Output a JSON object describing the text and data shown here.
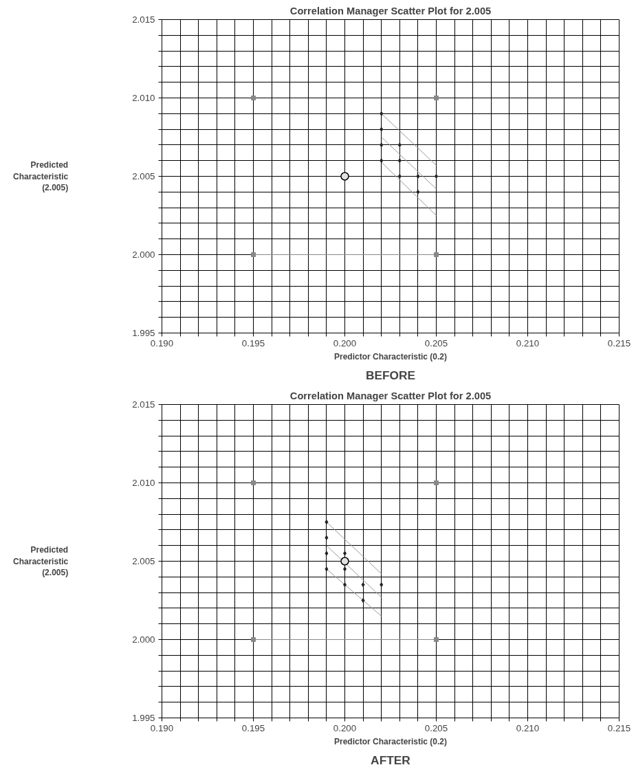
{
  "chart_data": [
    {
      "type": "scatter",
      "title": "Correlation Manager Scatter Plot for 2.005",
      "xlabel": "Predictor Characteristic (0.2)",
      "ylabel": "Predicted\nCharacteristic\n(2.005)",
      "annotations": [
        "BEFORE"
      ],
      "grid": true,
      "xlim": [
        0.19,
        0.215
      ],
      "ylim": [
        1.995,
        2.015
      ],
      "xticks": [
        {
          "value": 0.19,
          "label": "0.190"
        },
        {
          "value": 0.191,
          "label": null
        },
        {
          "value": 0.192,
          "label": null
        },
        {
          "value": 0.193,
          "label": null
        },
        {
          "value": 0.194,
          "label": null
        },
        {
          "value": 0.195,
          "label": "0.195"
        },
        {
          "value": 0.196,
          "label": null
        },
        {
          "value": 0.197,
          "label": null
        },
        {
          "value": 0.198,
          "label": null
        },
        {
          "value": 0.199,
          "label": null
        },
        {
          "value": 0.2,
          "label": "0.200"
        },
        {
          "value": 0.201,
          "label": null
        },
        {
          "value": 0.202,
          "label": null
        },
        {
          "value": 0.203,
          "label": null
        },
        {
          "value": 0.204,
          "label": null
        },
        {
          "value": 0.205,
          "label": "0.205"
        },
        {
          "value": 0.206,
          "label": null
        },
        {
          "value": 0.207,
          "label": null
        },
        {
          "value": 0.208,
          "label": null
        },
        {
          "value": 0.209,
          "label": null
        },
        {
          "value": 0.21,
          "label": "0.210"
        },
        {
          "value": 0.211,
          "label": null
        },
        {
          "value": 0.212,
          "label": null
        },
        {
          "value": 0.213,
          "label": null
        },
        {
          "value": 0.214,
          "label": null
        },
        {
          "value": 0.215,
          "label": "0.215"
        }
      ],
      "yticks": [
        {
          "value": 1.995,
          "label": "1.995"
        },
        {
          "value": 1.996,
          "label": null
        },
        {
          "value": 1.997,
          "label": null
        },
        {
          "value": 1.998,
          "label": null
        },
        {
          "value": 1.999,
          "label": null
        },
        {
          "value": 2.0,
          "label": "2.000"
        },
        {
          "value": 2.001,
          "label": null
        },
        {
          "value": 2.002,
          "label": null
        },
        {
          "value": 2.003,
          "label": null
        },
        {
          "value": 2.004,
          "label": null
        },
        {
          "value": 2.005,
          "label": "2.005"
        },
        {
          "value": 2.006,
          "label": null
        },
        {
          "value": 2.007,
          "label": null
        },
        {
          "value": 2.008,
          "label": null
        },
        {
          "value": 2.009,
          "label": null
        },
        {
          "value": 2.01,
          "label": "2.010"
        },
        {
          "value": 2.011,
          "label": null
        },
        {
          "value": 2.012,
          "label": null
        },
        {
          "value": 2.013,
          "label": null
        },
        {
          "value": 2.014,
          "label": null
        },
        {
          "value": 2.015,
          "label": "2.015"
        }
      ],
      "series": [
        {
          "type": "line",
          "marker": "none",
          "color": "#999999",
          "x": [
            0.202,
            0.205
          ],
          "values": [
            2.009,
            2.0057
          ]
        },
        {
          "type": "line",
          "marker": "none",
          "color": "#999999",
          "x": [
            0.202,
            0.205
          ],
          "values": [
            2.0075,
            2.0042
          ]
        },
        {
          "type": "line",
          "marker": "none",
          "color": "#999999",
          "x": [
            0.202,
            0.205
          ],
          "values": [
            2.0059,
            2.0025
          ]
        },
        {
          "type": "line",
          "marker": "square",
          "color": "#888888",
          "x": [
            0.195,
            0.205
          ],
          "values": [
            2.0,
            2.0
          ]
        },
        {
          "type": "scatter",
          "marker": "square",
          "color": "#888888",
          "x": [
            0.195,
            0.205
          ],
          "values": [
            2.01,
            2.01
          ]
        },
        {
          "type": "scatter",
          "marker": "diamond",
          "color": "#222222",
          "x": [
            0.202,
            0.202,
            0.202,
            0.202,
            0.203,
            0.203,
            0.203,
            0.204,
            0.204,
            0.205
          ],
          "values": [
            2.009,
            2.008,
            2.007,
            2.006,
            2.007,
            2.006,
            2.005,
            2.005,
            2.004,
            2.005
          ]
        },
        {
          "type": "scatter",
          "marker": "circle",
          "color": "#e0e0e0",
          "x": [
            0.2
          ],
          "values": [
            2.005
          ]
        }
      ]
    },
    {
      "type": "scatter",
      "title": "Correlation Manager Scatter Plot for 2.005",
      "xlabel": "Predictor Characteristic (0.2)",
      "ylabel": "Predicted\nCharacteristic\n(2.005)",
      "annotations": [
        "AFTER"
      ],
      "grid": true,
      "xlim": [
        0.19,
        0.215
      ],
      "ylim": [
        1.995,
        2.015
      ],
      "xticks": [
        {
          "value": 0.19,
          "label": "0.190"
        },
        {
          "value": 0.191,
          "label": null
        },
        {
          "value": 0.192,
          "label": null
        },
        {
          "value": 0.193,
          "label": null
        },
        {
          "value": 0.194,
          "label": null
        },
        {
          "value": 0.195,
          "label": "0.195"
        },
        {
          "value": 0.196,
          "label": null
        },
        {
          "value": 0.197,
          "label": null
        },
        {
          "value": 0.198,
          "label": null
        },
        {
          "value": 0.199,
          "label": null
        },
        {
          "value": 0.2,
          "label": "0.200"
        },
        {
          "value": 0.201,
          "label": null
        },
        {
          "value": 0.202,
          "label": null
        },
        {
          "value": 0.203,
          "label": null
        },
        {
          "value": 0.204,
          "label": null
        },
        {
          "value": 0.205,
          "label": "0.205"
        },
        {
          "value": 0.206,
          "label": null
        },
        {
          "value": 0.207,
          "label": null
        },
        {
          "value": 0.208,
          "label": null
        },
        {
          "value": 0.209,
          "label": null
        },
        {
          "value": 0.21,
          "label": "0.210"
        },
        {
          "value": 0.211,
          "label": null
        },
        {
          "value": 0.212,
          "label": null
        },
        {
          "value": 0.213,
          "label": null
        },
        {
          "value": 0.214,
          "label": null
        },
        {
          "value": 0.215,
          "label": "0.215"
        }
      ],
      "yticks": [
        {
          "value": 1.995,
          "label": "1.995"
        },
        {
          "value": 1.996,
          "label": null
        },
        {
          "value": 1.997,
          "label": null
        },
        {
          "value": 1.998,
          "label": null
        },
        {
          "value": 1.999,
          "label": null
        },
        {
          "value": 2.0,
          "label": "2.000"
        },
        {
          "value": 2.001,
          "label": null
        },
        {
          "value": 2.002,
          "label": null
        },
        {
          "value": 2.003,
          "label": null
        },
        {
          "value": 2.004,
          "label": null
        },
        {
          "value": 2.005,
          "label": "2.005"
        },
        {
          "value": 2.006,
          "label": null
        },
        {
          "value": 2.007,
          "label": null
        },
        {
          "value": 2.008,
          "label": null
        },
        {
          "value": 2.009,
          "label": null
        },
        {
          "value": 2.01,
          "label": "2.010"
        },
        {
          "value": 2.011,
          "label": null
        },
        {
          "value": 2.012,
          "label": null
        },
        {
          "value": 2.013,
          "label": null
        },
        {
          "value": 2.014,
          "label": null
        },
        {
          "value": 2.015,
          "label": "2.015"
        }
      ],
      "series": [
        {
          "type": "line",
          "marker": "none",
          "color": "#999999",
          "x": [
            0.199,
            0.202
          ],
          "values": [
            2.0075,
            2.0042
          ]
        },
        {
          "type": "line",
          "marker": "none",
          "color": "#999999",
          "x": [
            0.199,
            0.202
          ],
          "values": [
            2.006,
            2.0027
          ]
        },
        {
          "type": "line",
          "marker": "none",
          "color": "#999999",
          "x": [
            0.199,
            0.202
          ],
          "values": [
            2.0045,
            2.0015
          ]
        },
        {
          "type": "line",
          "marker": "square",
          "color": "#888888",
          "x": [
            0.195,
            0.205
          ],
          "values": [
            2.0,
            2.0
          ]
        },
        {
          "type": "scatter",
          "marker": "square",
          "color": "#888888",
          "x": [
            0.195,
            0.205
          ],
          "values": [
            2.01,
            2.01
          ]
        },
        {
          "type": "scatter",
          "marker": "diamond",
          "color": "#222222",
          "x": [
            0.199,
            0.199,
            0.199,
            0.199,
            0.2,
            0.2,
            0.2,
            0.201,
            0.201,
            0.202
          ],
          "values": [
            2.0075,
            2.0065,
            2.0055,
            2.0045,
            2.0055,
            2.0045,
            2.0035,
            2.0035,
            2.0025,
            2.0035
          ]
        },
        {
          "type": "scatter",
          "marker": "circle",
          "color": "#e0e0e0",
          "x": [
            0.2
          ],
          "values": [
            2.005
          ]
        }
      ]
    }
  ]
}
